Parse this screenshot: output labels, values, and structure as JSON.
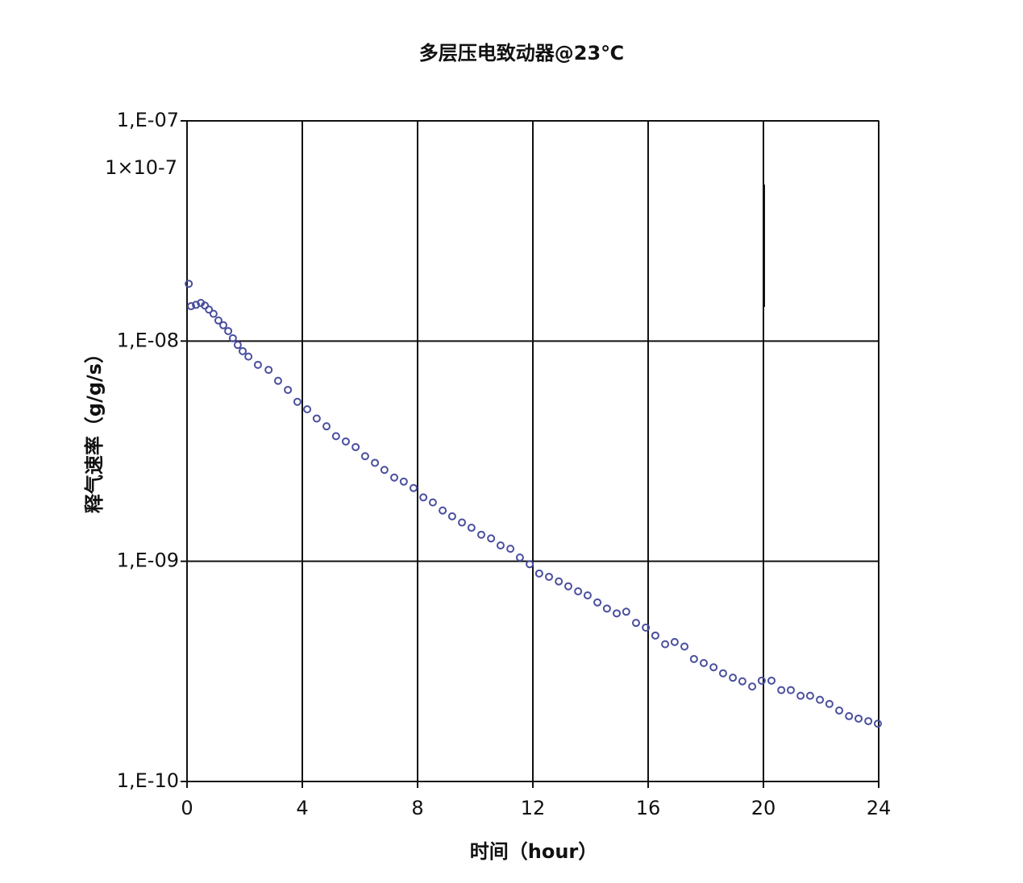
{
  "chart_data": {
    "type": "scatter",
    "title": "多层压电致动器@23℃",
    "x_label": "时间（hour）",
    "y_label": "释气速率（g/g/s）",
    "annotation": "1×10-7",
    "log_y": true,
    "grid": true,
    "color": "#4a4f9e",
    "xlim": [
      0,
      24
    ],
    "xticks": [
      0,
      4,
      8,
      12,
      16,
      20,
      24
    ],
    "ylim": [
      1e-10,
      1e-07
    ],
    "yticks": [
      {
        "value": 1e-10,
        "label": "1,E-10"
      },
      {
        "value": 1e-09,
        "label": "1,E-09"
      },
      {
        "value": 1e-08,
        "label": "1,E-08"
      },
      {
        "value": 1e-07,
        "label": "1,E-07"
      }
    ],
    "x": [
      0.06,
      0.14,
      0.31,
      0.48,
      0.62,
      0.76,
      0.92,
      1.09,
      1.26,
      1.43,
      1.59,
      1.76,
      1.93,
      2.13,
      2.46,
      2.83,
      3.16,
      3.5,
      3.83,
      4.17,
      4.5,
      4.84,
      5.17,
      5.51,
      5.85,
      6.18,
      6.52,
      6.85,
      7.19,
      7.52,
      7.86,
      8.2,
      8.53,
      8.87,
      9.2,
      9.54,
      9.87,
      10.21,
      10.55,
      10.88,
      11.22,
      11.55,
      11.89,
      12.22,
      12.56,
      12.9,
      13.23,
      13.57,
      13.9,
      14.24,
      14.57,
      14.91,
      15.24,
      15.58,
      15.92,
      16.25,
      16.59,
      16.92,
      17.26,
      17.59,
      17.93,
      18.27,
      18.6,
      18.94,
      19.27,
      19.61,
      19.94,
      20.28,
      20.62,
      20.95,
      21.29,
      21.62,
      21.96,
      22.29,
      22.63,
      22.97,
      23.3,
      23.64,
      23.97
    ],
    "values": [
      1.82e-08,
      1.44e-08,
      1.46e-08,
      1.49e-08,
      1.45e-08,
      1.39e-08,
      1.33e-08,
      1.24e-08,
      1.18e-08,
      1.11e-08,
      1.03e-08,
      9.6e-09,
      9e-09,
      8.5e-09,
      7.8e-09,
      7.4e-09,
      6.6e-09,
      6e-09,
      5.3e-09,
      4.9e-09,
      4.45e-09,
      4.1e-09,
      3.7e-09,
      3.5e-09,
      3.3e-09,
      3e-09,
      2.8e-09,
      2.6e-09,
      2.4e-09,
      2.3e-09,
      2.15e-09,
      1.95e-09,
      1.85e-09,
      1.7e-09,
      1.6e-09,
      1.5e-09,
      1.42e-09,
      1.32e-09,
      1.27e-09,
      1.18e-09,
      1.14e-09,
      1.04e-09,
      9.7e-10,
      8.8e-10,
      8.5e-10,
      8.1e-10,
      7.7e-10,
      7.3e-10,
      7e-10,
      6.5e-10,
      6.1e-10,
      5.8e-10,
      5.9e-10,
      5.25e-10,
      5e-10,
      4.6e-10,
      4.2e-10,
      4.3e-10,
      4.1e-10,
      3.6e-10,
      3.45e-10,
      3.3e-10,
      3.1e-10,
      2.96e-10,
      2.85e-10,
      2.7e-10,
      2.87e-10,
      2.87e-10,
      2.6e-10,
      2.6e-10,
      2.45e-10,
      2.45e-10,
      2.35e-10,
      2.25e-10,
      2.1e-10,
      1.98e-10,
      1.93e-10,
      1.88e-10,
      1.83e-10
    ]
  }
}
